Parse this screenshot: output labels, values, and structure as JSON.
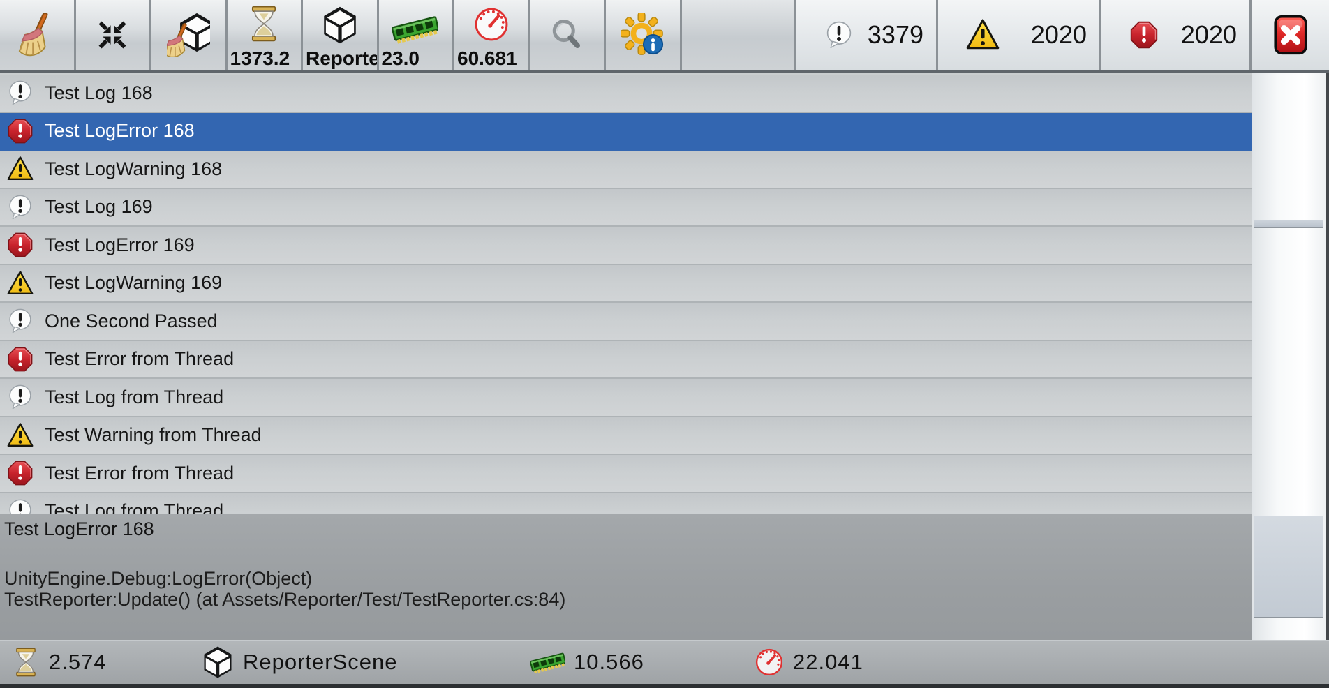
{
  "toolbar": {
    "buttons": [
      {
        "name": "clear",
        "icon": "broom",
        "value": ""
      },
      {
        "name": "collapse",
        "icon": "collapse",
        "value": ""
      },
      {
        "name": "clear-on-scene-loaded",
        "icon": "clean-scene",
        "value": ""
      },
      {
        "name": "show-time",
        "icon": "hourglass",
        "value": "1373.2"
      },
      {
        "name": "show-scene",
        "icon": "unity-cube",
        "value": "Reporter"
      },
      {
        "name": "show-memory",
        "icon": "ram",
        "value": "23.0"
      },
      {
        "name": "show-fps",
        "icon": "speedometer",
        "value": "60.681"
      },
      {
        "name": "search",
        "icon": "search",
        "value": ""
      },
      {
        "name": "info-settings",
        "icon": "gear-info",
        "value": ""
      }
    ],
    "counts": [
      {
        "name": "log-count",
        "icon": "info-bubble",
        "value": "3379"
      },
      {
        "name": "warning-count",
        "icon": "warning-triangle",
        "value": "2020"
      },
      {
        "name": "error-count",
        "icon": "error-octagon",
        "value": "2020"
      }
    ]
  },
  "list": {
    "items": [
      {
        "type": "log",
        "text": "Test Log 168",
        "selected": false
      },
      {
        "type": "error",
        "text": "Test LogError 168",
        "selected": true
      },
      {
        "type": "warning",
        "text": "Test LogWarning 168",
        "selected": false
      },
      {
        "type": "log",
        "text": "Test Log 169",
        "selected": false
      },
      {
        "type": "error",
        "text": "Test LogError 169",
        "selected": false
      },
      {
        "type": "warning",
        "text": "Test LogWarning 169",
        "selected": false
      },
      {
        "type": "log",
        "text": "One Second Passed",
        "selected": false
      },
      {
        "type": "error",
        "text": "Test Error from Thread",
        "selected": false
      },
      {
        "type": "log",
        "text": "Test Log from Thread",
        "selected": false
      },
      {
        "type": "warning",
        "text": "Test Warning from Thread",
        "selected": false
      },
      {
        "type": "error",
        "text": "Test Error from Thread",
        "selected": false
      },
      {
        "type": "log",
        "text": "Test Log from Thread",
        "selected": false
      }
    ]
  },
  "detail": {
    "title": "Test LogError 168",
    "stack": [
      "UnityEngine.Debug:LogError(Object)",
      "TestReporter:Update() (at Assets/Reporter/Test/TestReporter.cs:84)"
    ]
  },
  "statusbar": {
    "items": [
      {
        "icon": "hourglass",
        "value": "2.574"
      },
      {
        "icon": "unity-cube",
        "value": "ReporterScene"
      },
      {
        "icon": "ram",
        "value": "10.566"
      },
      {
        "icon": "speedometer",
        "value": "22.041"
      }
    ]
  },
  "colors": {
    "selection": "#3366b1",
    "error": "#c2262e",
    "warning": "#f7d41f",
    "info_badge": "#1d6cb5",
    "close_red": "#d2211f"
  }
}
